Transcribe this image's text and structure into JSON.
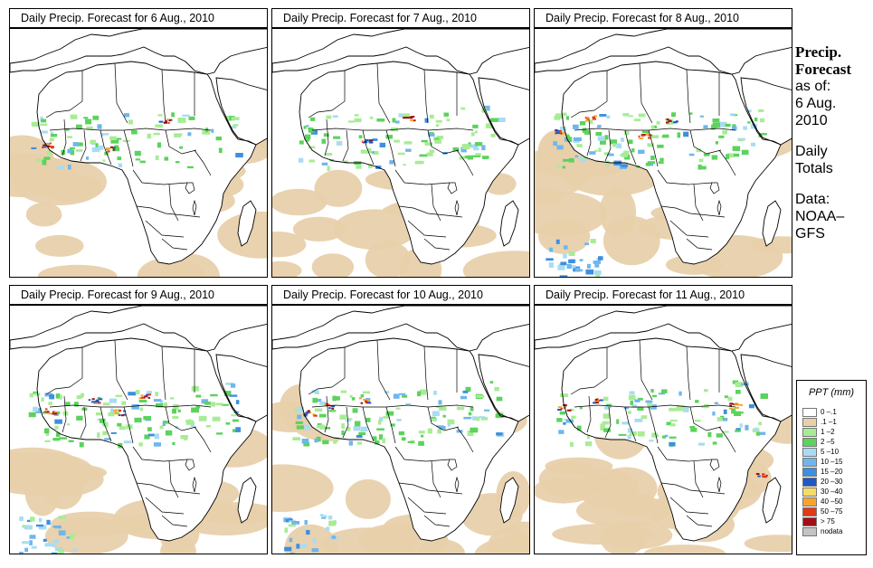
{
  "panels": [
    {
      "title": "Daily Precip. Forecast for  6 Aug., 2010"
    },
    {
      "title": "Daily Precip. Forecast for  7 Aug., 2010"
    },
    {
      "title": "Daily Precip. Forecast for  8 Aug., 2010"
    },
    {
      "title": "Daily Precip. Forecast for  9 Aug., 2010"
    },
    {
      "title": "Daily Precip. Forecast for  10 Aug., 2010"
    },
    {
      "title": "Daily Precip. Forecast for  11 Aug., 2010"
    }
  ],
  "sidebar": {
    "line1": "Precip.",
    "line2": "Forecast",
    "line3": "as of:",
    "line4": "6 Aug.",
    "line5": "2010",
    "line6": "Daily",
    "line7": "Totals",
    "line8": "Data:",
    "line9": "NOAA–",
    "line10": "GFS"
  },
  "legend": {
    "title": "PPT (mm)",
    "items": [
      {
        "label": "0 –.1",
        "color": "#ffffff"
      },
      {
        "label": ".1 –1",
        "color": "#e8d0ab"
      },
      {
        "label": "1 –2",
        "color": "#a8ec96"
      },
      {
        "label": "2 –5",
        "color": "#5bd35c"
      },
      {
        "label": "5 –10",
        "color": "#a9dcf3"
      },
      {
        "label": "10 –15",
        "color": "#6fb6ec"
      },
      {
        "label": "15 –20",
        "color": "#3e8fdf"
      },
      {
        "label": "20 –30",
        "color": "#1f58c4"
      },
      {
        "label": "30 –40",
        "color": "#f6dc66"
      },
      {
        "label": "40 –50",
        "color": "#f5a52c"
      },
      {
        "label": "50 –75",
        "color": "#e13a16"
      },
      {
        "label": "> 75",
        "color": "#a30f16"
      },
      {
        "label": "nodata",
        "color": "#c4c4c4"
      }
    ]
  }
}
